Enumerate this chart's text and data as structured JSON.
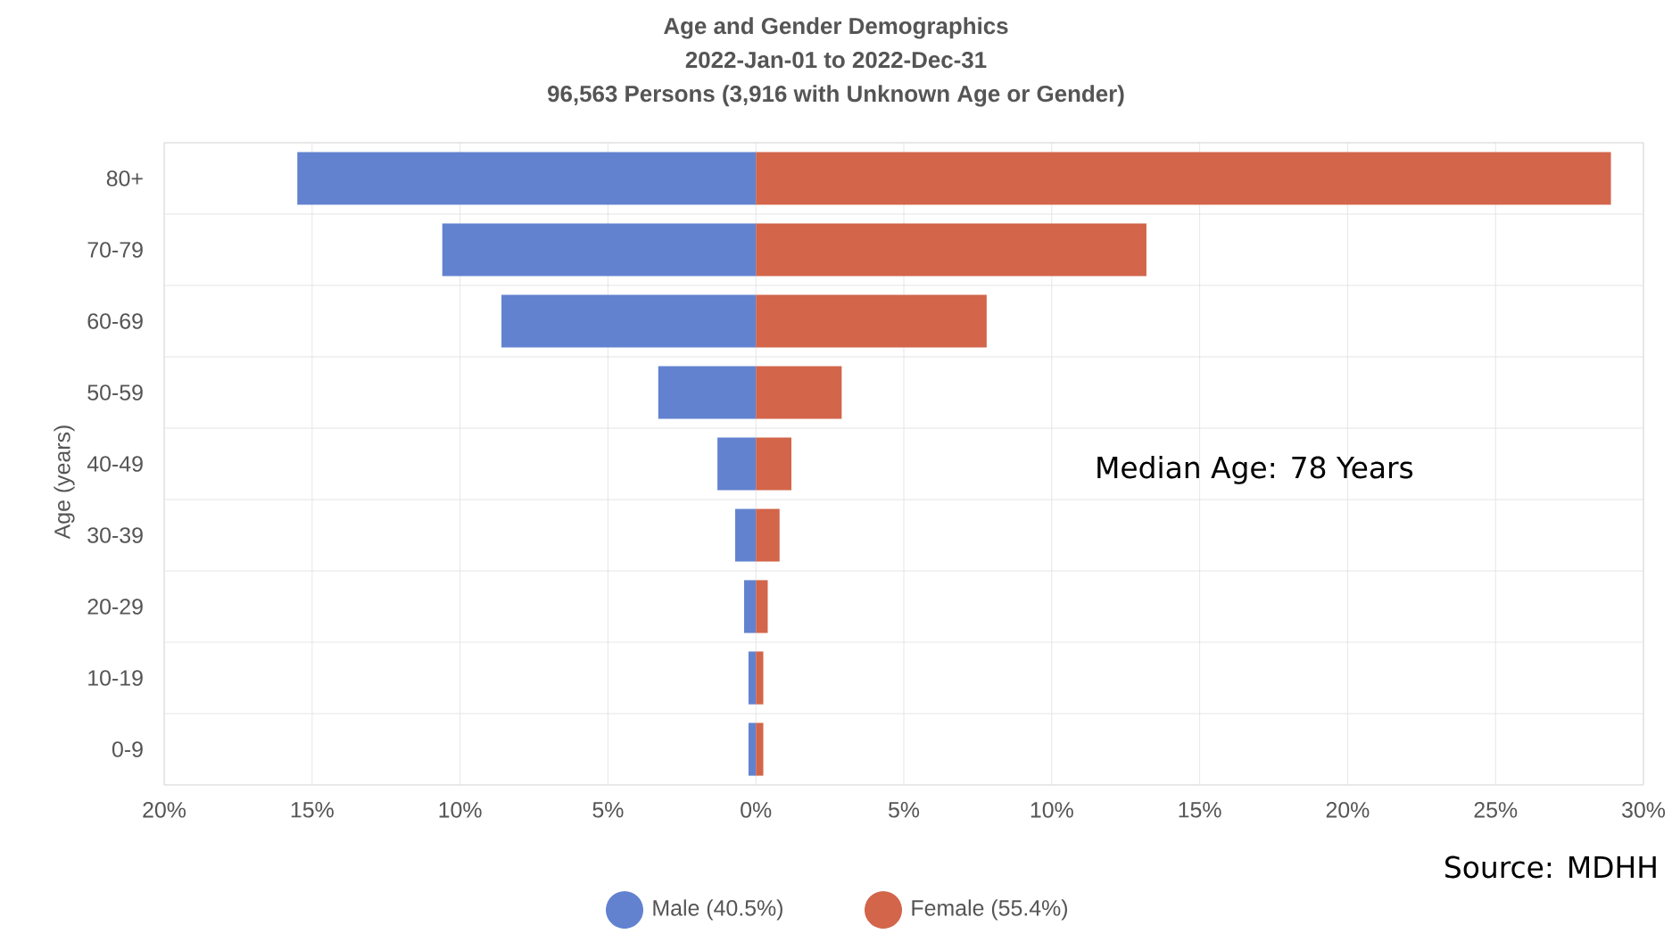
{
  "chart_data": {
    "type": "bar",
    "orientation": "horizontal",
    "stacked": true,
    "title": "Age and Gender Demographics",
    "subtitle": "2022-Jan-01 to 2022-Dec-31",
    "ylabel": "Age (years)",
    "categories": [
      "80+",
      "70-79",
      "60-69",
      "50-59",
      "40-49",
      "30-39",
      "20-29",
      "10-19",
      "0-9"
    ],
    "series": [
      {
        "name": "Male (40.5%)",
        "color": "#6282d0",
        "values": [
          -15.5,
          -10.6,
          -8.6,
          -3.3,
          -1.3,
          -0.7,
          -0.4,
          -0.25,
          -0.25
        ]
      },
      {
        "name": "Female (55.4%)",
        "color": "#d2654a",
        "values": [
          28.9,
          13.2,
          7.8,
          2.9,
          1.2,
          0.8,
          0.4,
          0.25,
          0.25
        ]
      }
    ],
    "xlim": [
      -20,
      30
    ],
    "xticks": [
      {
        "value": -20,
        "label": "20%"
      },
      {
        "value": -15,
        "label": "15%"
      },
      {
        "value": -10,
        "label": "10%"
      },
      {
        "value": -5,
        "label": "5%"
      },
      {
        "value": 0,
        "label": "0%"
      },
      {
        "value": 5,
        "label": "5%"
      },
      {
        "value": 10,
        "label": "10%"
      },
      {
        "value": 15,
        "label": "15%"
      },
      {
        "value": 20,
        "label": "20%"
      },
      {
        "value": 25,
        "label": "25%"
      },
      {
        "value": 30,
        "label": "30%"
      }
    ],
    "grid": true,
    "legend": "bottom",
    "annotations": [
      "96,563 Persons (3,916 with Unknown Age or Gender)",
      "Median Age: 78 Years",
      "Source: MDHH"
    ]
  }
}
